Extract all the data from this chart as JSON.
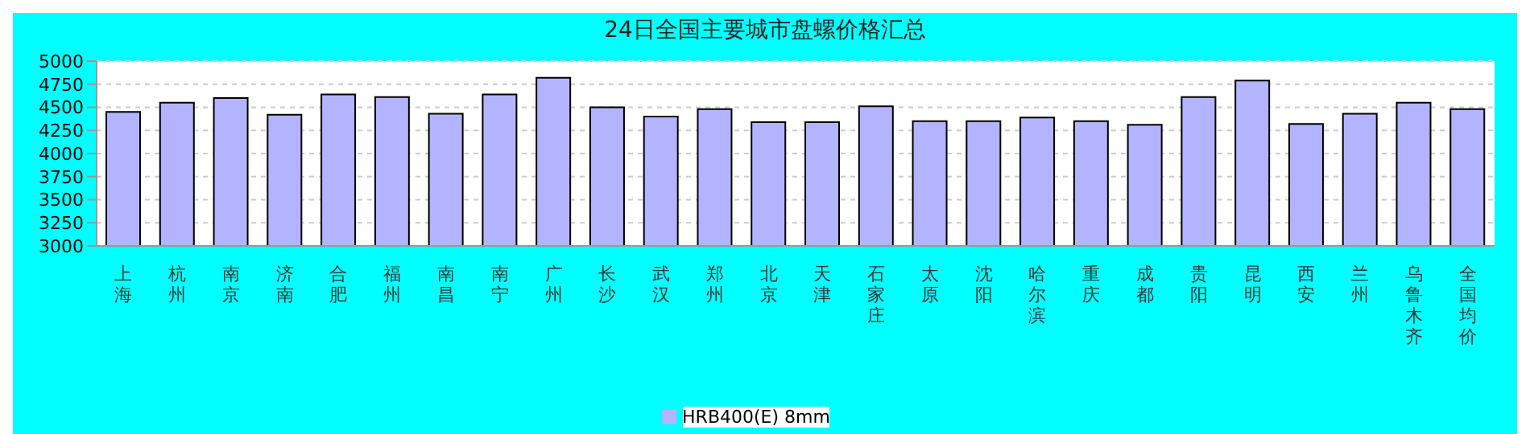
{
  "chart_data": {
    "type": "bar",
    "title": "24日全国主要城市盘螺价格汇总",
    "categories": [
      "上海",
      "杭州",
      "南京",
      "济南",
      "合肥",
      "福州",
      "南昌",
      "南宁",
      "广州",
      "长沙",
      "武汉",
      "郑州",
      "北京",
      "天津",
      "石家庄",
      "太原",
      "沈阳",
      "哈尔滨",
      "重庆",
      "成都",
      "贵阳",
      "昆明",
      "西安",
      "兰州",
      "乌鲁木齐",
      "全国均价"
    ],
    "series": [
      {
        "name": "HRB400(E) 8mm",
        "color": "#b3b3ff",
        "values": [
          4450,
          4550,
          4600,
          4420,
          4640,
          4610,
          4430,
          4640,
          4820,
          4500,
          4400,
          4480,
          4340,
          4340,
          4510,
          4350,
          4350,
          4390,
          4350,
          4310,
          4610,
          4790,
          4320,
          4430,
          4550,
          4480
        ]
      }
    ],
    "ylim": [
      3000,
      5000
    ],
    "yticks": [
      3000,
      3250,
      3500,
      3750,
      4000,
      4250,
      4500,
      4750,
      5000
    ],
    "grid": "y",
    "legend": "bottom"
  }
}
